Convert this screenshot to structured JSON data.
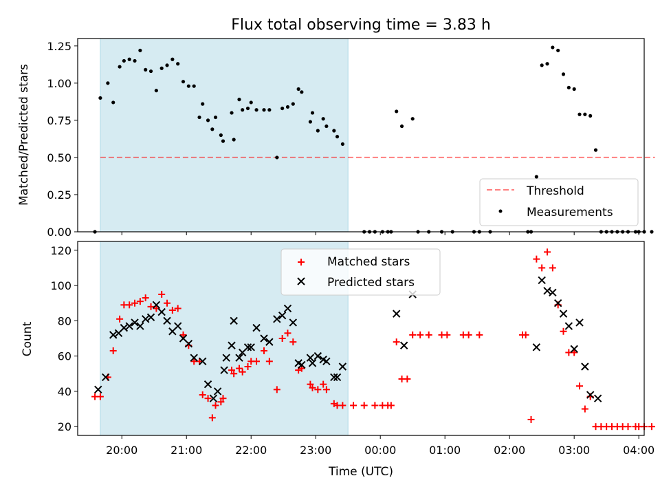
{
  "title": "Flux total observing time = 3.83 h",
  "colors": {
    "shade": "#add8e6",
    "threshold": "#ff0000",
    "measurements": "#000000",
    "matched": "#ff0000",
    "predicted": "#000000"
  },
  "chart_data": [
    {
      "type": "scatter",
      "panel": "top",
      "ylabel": "Matched/Predicted stars",
      "xlabel": "",
      "ylim": [
        0,
        1.3
      ],
      "yticks": [
        "0.00",
        "0.25",
        "0.50",
        "0.75",
        "1.00",
        "1.25"
      ],
      "shaded_region": [
        "19:40",
        "23:30"
      ],
      "legend": {
        "placement": "lower-right",
        "entries": [
          "Threshold",
          "Measurements"
        ]
      },
      "threshold": {
        "name": "Threshold",
        "value": 0.5,
        "x_range": [
          "19:40",
          "04:15"
        ]
      },
      "series": [
        {
          "name": "Measurements",
          "points": [
            [
              "19:35",
              0.0
            ],
            [
              "19:40",
              0.9
            ],
            [
              "19:47",
              1.0
            ],
            [
              "19:52",
              0.87
            ],
            [
              "19:58",
              1.11
            ],
            [
              "20:02",
              1.15
            ],
            [
              "20:07",
              1.16
            ],
            [
              "20:12",
              1.15
            ],
            [
              "20:17",
              1.22
            ],
            [
              "20:22",
              1.09
            ],
            [
              "20:27",
              1.08
            ],
            [
              "20:32",
              0.95
            ],
            [
              "20:37",
              1.1
            ],
            [
              "20:42",
              1.12
            ],
            [
              "20:47",
              1.16
            ],
            [
              "20:52",
              1.13
            ],
            [
              "20:57",
              1.01
            ],
            [
              "21:02",
              0.98
            ],
            [
              "21:07",
              0.98
            ],
            [
              "21:12",
              0.77
            ],
            [
              "21:15",
              0.86
            ],
            [
              "21:20",
              0.75
            ],
            [
              "21:24",
              0.69
            ],
            [
              "21:27",
              0.77
            ],
            [
              "21:32",
              0.65
            ],
            [
              "21:34",
              0.61
            ],
            [
              "21:42",
              0.8
            ],
            [
              "21:44",
              0.62
            ],
            [
              "21:49",
              0.89
            ],
            [
              "21:52",
              0.82
            ],
            [
              "21:57",
              0.83
            ],
            [
              "22:00",
              0.87
            ],
            [
              "22:05",
              0.82
            ],
            [
              "22:12",
              0.82
            ],
            [
              "22:17",
              0.82
            ],
            [
              "22:24",
              0.5
            ],
            [
              "22:29",
              0.83
            ],
            [
              "22:34",
              0.84
            ],
            [
              "22:39",
              0.86
            ],
            [
              "22:44",
              0.96
            ],
            [
              "22:47",
              0.94
            ],
            [
              "22:55",
              0.74
            ],
            [
              "22:57",
              0.8
            ],
            [
              "23:02",
              0.68
            ],
            [
              "23:07",
              0.76
            ],
            [
              "23:10",
              0.71
            ],
            [
              "23:17",
              0.68
            ],
            [
              "23:20",
              0.64
            ],
            [
              "23:25",
              0.59
            ],
            [
              "23:45",
              0.0
            ],
            [
              "23:50",
              0.0
            ],
            [
              "23:55",
              0.0
            ],
            [
              "00:02",
              0.0
            ],
            [
              "00:07",
              0.0
            ],
            [
              "00:10",
              0.0
            ],
            [
              "00:15",
              0.81
            ],
            [
              "00:20",
              0.71
            ],
            [
              "00:30",
              0.76
            ],
            [
              "00:35",
              0.0
            ],
            [
              "00:45",
              0.0
            ],
            [
              "00:57",
              0.0
            ],
            [
              "01:07",
              0.0
            ],
            [
              "01:27",
              0.0
            ],
            [
              "01:32",
              0.0
            ],
            [
              "01:42",
              0.0
            ],
            [
              "02:17",
              0.0
            ],
            [
              "02:20",
              0.0
            ],
            [
              "02:25",
              0.37
            ],
            [
              "02:30",
              1.12
            ],
            [
              "02:35",
              1.13
            ],
            [
              "02:40",
              1.24
            ],
            [
              "02:45",
              1.22
            ],
            [
              "02:50",
              1.06
            ],
            [
              "02:55",
              0.97
            ],
            [
              "03:00",
              0.96
            ],
            [
              "03:05",
              0.79
            ],
            [
              "03:10",
              0.79
            ],
            [
              "03:15",
              0.78
            ],
            [
              "03:20",
              0.55
            ],
            [
              "03:25",
              0.0
            ],
            [
              "03:30",
              0.0
            ],
            [
              "03:35",
              0.0
            ],
            [
              "03:40",
              0.0
            ],
            [
              "03:45",
              0.0
            ],
            [
              "03:50",
              0.0
            ],
            [
              "03:57",
              0.0
            ],
            [
              "04:00",
              0.0
            ],
            [
              "04:05",
              0.0
            ],
            [
              "04:12",
              0.0
            ]
          ]
        }
      ]
    },
    {
      "type": "scatter",
      "panel": "bottom",
      "ylabel": "Count",
      "xlabel": "Time (UTC)",
      "ylim": [
        15,
        125
      ],
      "yticks": [
        "20",
        "40",
        "60",
        "80",
        "100",
        "120"
      ],
      "xticks": [
        "20:00",
        "21:00",
        "22:00",
        "23:00",
        "00:00",
        "01:00",
        "02:00",
        "03:00",
        "04:00"
      ],
      "shaded_region": [
        "19:40",
        "23:30"
      ],
      "legend": {
        "placement": "upper-center",
        "entries": [
          "Matched stars",
          "Predicted stars"
        ]
      },
      "series": [
        {
          "name": "Matched stars",
          "points": [
            [
              "19:35",
              37
            ],
            [
              "19:40",
              37
            ],
            [
              "19:47",
              48
            ],
            [
              "19:52",
              63
            ],
            [
              "19:58",
              81
            ],
            [
              "20:02",
              89
            ],
            [
              "20:07",
              89
            ],
            [
              "20:12",
              90
            ],
            [
              "20:17",
              91
            ],
            [
              "20:22",
              93
            ],
            [
              "20:27",
              88
            ],
            [
              "20:32",
              87
            ],
            [
              "20:37",
              95
            ],
            [
              "20:42",
              90
            ],
            [
              "20:47",
              86
            ],
            [
              "20:52",
              87
            ],
            [
              "20:57",
              72
            ],
            [
              "21:02",
              66
            ],
            [
              "21:07",
              57
            ],
            [
              "21:12",
              57
            ],
            [
              "21:15",
              38
            ],
            [
              "21:20",
              36
            ],
            [
              "21:24",
              25
            ],
            [
              "21:27",
              32
            ],
            [
              "21:32",
              34
            ],
            [
              "21:34",
              36
            ],
            [
              "21:42",
              52
            ],
            [
              "21:44",
              50
            ],
            [
              "21:49",
              53
            ],
            [
              "21:52",
              51
            ],
            [
              "21:57",
              54
            ],
            [
              "22:00",
              57
            ],
            [
              "22:05",
              57
            ],
            [
              "22:12",
              63
            ],
            [
              "22:17",
              57
            ],
            [
              "22:24",
              41
            ],
            [
              "22:29",
              70
            ],
            [
              "22:34",
              73
            ],
            [
              "22:39",
              68
            ],
            [
              "22:44",
              52
            ],
            [
              "22:47",
              53
            ],
            [
              "22:55",
              44
            ],
            [
              "22:57",
              42
            ],
            [
              "23:02",
              41
            ],
            [
              "23:07",
              44
            ],
            [
              "23:10",
              41
            ],
            [
              "23:17",
              33
            ],
            [
              "23:20",
              32
            ],
            [
              "23:25",
              32
            ],
            [
              "23:35",
              32
            ],
            [
              "23:45",
              32
            ],
            [
              "23:55",
              32
            ],
            [
              "00:02",
              32
            ],
            [
              "00:07",
              32
            ],
            [
              "00:10",
              32
            ],
            [
              "00:15",
              68
            ],
            [
              "00:20",
              47
            ],
            [
              "00:25",
              47
            ],
            [
              "00:30",
              72
            ],
            [
              "00:37",
              72
            ],
            [
              "00:45",
              72
            ],
            [
              "00:57",
              72
            ],
            [
              "01:02",
              72
            ],
            [
              "01:17",
              72
            ],
            [
              "01:22",
              72
            ],
            [
              "01:32",
              72
            ],
            [
              "02:12",
              72
            ],
            [
              "02:15",
              72
            ],
            [
              "02:20",
              24
            ],
            [
              "02:25",
              115
            ],
            [
              "02:30",
              110
            ],
            [
              "02:35",
              119
            ],
            [
              "02:40",
              110
            ],
            [
              "02:45",
              89
            ],
            [
              "02:50",
              74
            ],
            [
              "02:55",
              62
            ],
            [
              "03:00",
              62
            ],
            [
              "03:05",
              43
            ],
            [
              "03:10",
              30
            ],
            [
              "03:15",
              37
            ],
            [
              "03:20",
              20
            ],
            [
              "03:25",
              20
            ],
            [
              "03:30",
              20
            ],
            [
              "03:35",
              20
            ],
            [
              "03:40",
              20
            ],
            [
              "03:45",
              20
            ],
            [
              "03:50",
              20
            ],
            [
              "03:57",
              20
            ],
            [
              "04:00",
              20
            ],
            [
              "04:05",
              20
            ],
            [
              "04:12",
              20
            ]
          ]
        },
        {
          "name": "Predicted stars",
          "points": [
            [
              "19:38",
              41
            ],
            [
              "19:45",
              48
            ],
            [
              "19:52",
              72
            ],
            [
              "19:57",
              73
            ],
            [
              "20:02",
              76
            ],
            [
              "20:07",
              77
            ],
            [
              "20:12",
              79
            ],
            [
              "20:17",
              77
            ],
            [
              "20:22",
              81
            ],
            [
              "20:27",
              82
            ],
            [
              "20:32",
              89
            ],
            [
              "20:37",
              85
            ],
            [
              "20:42",
              80
            ],
            [
              "20:47",
              74
            ],
            [
              "20:52",
              77
            ],
            [
              "20:57",
              70
            ],
            [
              "21:02",
              67
            ],
            [
              "21:07",
              59
            ],
            [
              "21:15",
              57
            ],
            [
              "21:20",
              44
            ],
            [
              "21:25",
              36
            ],
            [
              "21:29",
              40
            ],
            [
              "21:35",
              52
            ],
            [
              "21:37",
              59
            ],
            [
              "21:42",
              66
            ],
            [
              "21:44",
              80
            ],
            [
              "21:49",
              59
            ],
            [
              "21:52",
              62
            ],
            [
              "21:57",
              65
            ],
            [
              "22:00",
              65
            ],
            [
              "22:05",
              76
            ],
            [
              "22:12",
              70
            ],
            [
              "22:17",
              68
            ],
            [
              "22:24",
              81
            ],
            [
              "22:29",
              83
            ],
            [
              "22:34",
              87
            ],
            [
              "22:39",
              79
            ],
            [
              "22:44",
              56
            ],
            [
              "22:47",
              55
            ],
            [
              "22:55",
              59
            ],
            [
              "22:57",
              56
            ],
            [
              "23:02",
              60
            ],
            [
              "23:07",
              58
            ],
            [
              "23:10",
              57
            ],
            [
              "23:17",
              48
            ],
            [
              "23:20",
              48
            ],
            [
              "23:25",
              54
            ],
            [
              "00:15",
              84
            ],
            [
              "00:22",
              66
            ],
            [
              "00:30",
              95
            ],
            [
              "02:25",
              65
            ],
            [
              "02:30",
              103
            ],
            [
              "02:35",
              97
            ],
            [
              "02:40",
              96
            ],
            [
              "02:45",
              90
            ],
            [
              "02:50",
              84
            ],
            [
              "02:55",
              77
            ],
            [
              "03:00",
              64
            ],
            [
              "03:05",
              79
            ],
            [
              "03:10",
              54
            ],
            [
              "03:15",
              38
            ],
            [
              "03:22",
              36
            ]
          ]
        }
      ]
    }
  ]
}
